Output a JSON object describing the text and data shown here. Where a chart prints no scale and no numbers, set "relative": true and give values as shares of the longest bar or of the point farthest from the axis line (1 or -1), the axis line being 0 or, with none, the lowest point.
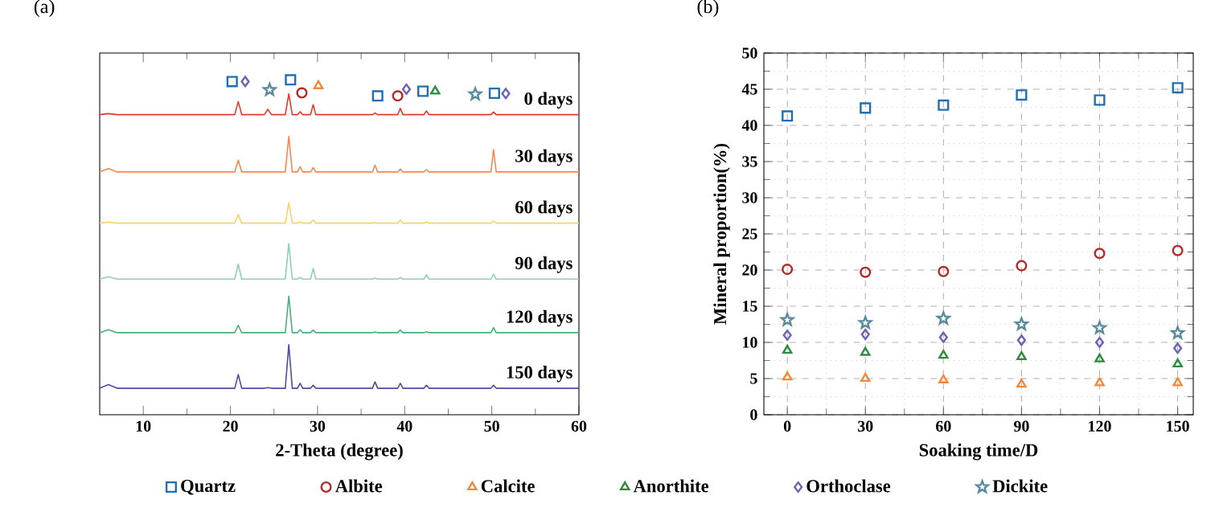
{
  "chart_data": [
    {
      "type": "line",
      "title": "(a)",
      "xlabel": "2-Theta (degree)",
      "relative": true,
      "xlim": [
        5,
        60
      ],
      "xticks": [
        10,
        20,
        30,
        40,
        50,
        60
      ],
      "x": [
        5,
        6,
        7,
        10,
        15,
        20.5,
        20.9,
        21.3,
        23.9,
        24.3,
        24.7,
        26.3,
        26.7,
        27.1,
        27.7,
        28.0,
        28.3,
        29.2,
        29.5,
        29.8,
        36.3,
        36.6,
        36.9,
        39.2,
        39.5,
        39.8,
        42.2,
        42.5,
        42.8,
        49.9,
        50.2,
        50.5,
        55,
        60
      ],
      "series": [
        {
          "name": "0 days",
          "color": "#e03a2a",
          "values": [
            0.896,
            0.899,
            0.896,
            0.896,
            0.896,
            0.896,
            0.935,
            0.896,
            0.896,
            0.912,
            0.896,
            0.896,
            0.958,
            0.896,
            0.896,
            0.905,
            0.896,
            0.896,
            0.926,
            0.896,
            0.896,
            0.901,
            0.896,
            0.896,
            0.915,
            0.896,
            0.896,
            0.907,
            0.896,
            0.896,
            0.904,
            0.896,
            0.896,
            0.896
          ]
        },
        {
          "name": "30 days",
          "color": "#f5884f",
          "values": [
            0.725,
            0.735,
            0.725,
            0.725,
            0.725,
            0.725,
            0.76,
            0.725,
            0.725,
            0.725,
            0.725,
            0.725,
            0.831,
            0.725,
            0.725,
            0.741,
            0.725,
            0.725,
            0.738,
            0.725,
            0.725,
            0.745,
            0.725,
            0.725,
            0.734,
            0.725,
            0.725,
            0.732,
            0.725,
            0.725,
            0.792,
            0.725,
            0.725,
            0.725
          ]
        },
        {
          "name": "60 days",
          "color": "#f5d46a",
          "values": [
            0.572,
            0.575,
            0.572,
            0.572,
            0.572,
            0.572,
            0.598,
            0.572,
            0.572,
            0.572,
            0.572,
            0.572,
            0.633,
            0.572,
            0.572,
            0.576,
            0.572,
            0.572,
            0.582,
            0.572,
            0.572,
            0.574,
            0.572,
            0.572,
            0.582,
            0.572,
            0.572,
            0.576,
            0.572,
            0.572,
            0.579,
            0.572,
            0.572,
            0.572
          ]
        },
        {
          "name": "90 days",
          "color": "#8fd1b0",
          "values": [
            0.405,
            0.412,
            0.405,
            0.405,
            0.405,
            0.405,
            0.45,
            0.405,
            0.405,
            0.405,
            0.405,
            0.405,
            0.511,
            0.405,
            0.405,
            0.41,
            0.405,
            0.405,
            0.437,
            0.405,
            0.405,
            0.408,
            0.405,
            0.405,
            0.41,
            0.405,
            0.405,
            0.418,
            0.405,
            0.405,
            0.42,
            0.405,
            0.405,
            0.405
          ]
        },
        {
          "name": "120 days",
          "color": "#4caf7a",
          "values": [
            0.245,
            0.254,
            0.245,
            0.245,
            0.245,
            0.245,
            0.267,
            0.245,
            0.245,
            0.245,
            0.245,
            0.245,
            0.354,
            0.245,
            0.245,
            0.254,
            0.245,
            0.245,
            0.253,
            0.245,
            0.245,
            0.247,
            0.245,
            0.245,
            0.253,
            0.245,
            0.245,
            0.248,
            0.245,
            0.245,
            0.26,
            0.245,
            0.245,
            0.245
          ]
        },
        {
          "name": "150 days",
          "color": "#4a4ea0",
          "values": [
            0.079,
            0.09,
            0.079,
            0.079,
            0.079,
            0.079,
            0.12,
            0.079,
            0.079,
            0.081,
            0.079,
            0.079,
            0.209,
            0.079,
            0.079,
            0.094,
            0.079,
            0.079,
            0.088,
            0.079,
            0.079,
            0.098,
            0.079,
            0.079,
            0.094,
            0.079,
            0.079,
            0.088,
            0.079,
            0.079,
            0.088,
            0.079,
            0.079,
            0.079
          ]
        },
        {
          "type": "scatter",
          "marker": "square",
          "color": "#1f6fb2",
          "x": [
            20.2,
            26.9,
            36.9,
            42.1,
            50.3
          ],
          "values": [
            0.995,
            1.0,
            0.952,
            0.966,
            0.96
          ]
        },
        {
          "type": "scatter",
          "marker": "circle",
          "color": "#b22a2a",
          "x": [
            28.2,
            39.2
          ],
          "values": [
            0.961,
            0.952
          ]
        },
        {
          "type": "scatter",
          "marker": "triangle",
          "color": "#f0883e",
          "x": [
            30.1
          ],
          "values": [
            0.982
          ]
        },
        {
          "type": "scatter",
          "marker": "triangle",
          "color": "#2e8b3e",
          "x": [
            43.5
          ],
          "values": [
            0.966
          ]
        },
        {
          "type": "scatter",
          "marker": "diamond",
          "color": "#6a62b5",
          "x": [
            21.7,
            40.2,
            51.6
          ],
          "values": [
            0.995,
            0.972,
            0.959
          ]
        },
        {
          "type": "scatter",
          "marker": "star",
          "color": "#5a8a9e",
          "x": [
            24.5,
            48.1
          ],
          "values": [
            0.97,
            0.957
          ]
        }
      ]
    },
    {
      "type": "scatter",
      "title": "(b)",
      "xlabel": "Soaking time/D",
      "ylabel": "Mineral proportion(%)",
      "x": [
        0,
        30,
        60,
        90,
        120,
        150
      ],
      "xlim": [
        -9,
        156
      ],
      "xticks": [
        0,
        30,
        60,
        90,
        120,
        150
      ],
      "ylim": [
        0,
        50
      ],
      "yticks": [
        0,
        5,
        10,
        15,
        20,
        25,
        30,
        35,
        40,
        45,
        50
      ],
      "grid": true,
      "legend": "bottom",
      "series": [
        {
          "name": "Quartz",
          "color": "#1f6fb2",
          "marker": "square",
          "values": [
            41.3,
            42.4,
            42.8,
            44.2,
            43.5,
            45.2
          ]
        },
        {
          "name": "Albite",
          "color": "#b22a2a",
          "marker": "circle",
          "values": [
            20.1,
            19.7,
            19.8,
            20.6,
            22.3,
            22.7
          ]
        },
        {
          "name": "Calcite",
          "color": "#f0883e",
          "marker": "triangle",
          "values": [
            5.2,
            5.0,
            4.8,
            4.2,
            4.4,
            4.4
          ]
        },
        {
          "name": "Anorthite",
          "color": "#2e8b3e",
          "marker": "triangle",
          "values": [
            8.9,
            8.6,
            8.2,
            8.0,
            7.7,
            7.0
          ]
        },
        {
          "name": "Orthoclase",
          "color": "#6a62b5",
          "marker": "diamond",
          "values": [
            11.0,
            11.1,
            10.7,
            10.3,
            10.0,
            9.2
          ]
        },
        {
          "name": "Dickite",
          "color": "#5a8a9e",
          "marker": "star",
          "values": [
            13.1,
            12.7,
            13.3,
            12.5,
            12.0,
            11.3
          ]
        }
      ]
    }
  ]
}
